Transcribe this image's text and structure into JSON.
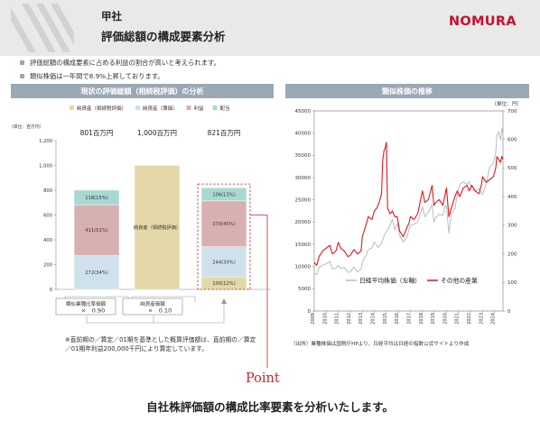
{
  "header": {
    "company": "甲社",
    "title": "評価総額の構成要素分析",
    "logo": "NOMURA",
    "colors": {
      "background": "#e9e9e9",
      "logo": "#c8102e"
    }
  },
  "bullets": [
    "評価総額の構成要素に占める利益の割合が高いと考えられます。",
    "類似株価は一年間で8.9%上昇しております。"
  ],
  "left_panel": {
    "title": "現状の評価総額（相続税評価）の分析",
    "unit_label": "（単位：百万円）",
    "bar_totals": [
      "801百万円",
      "1,000百万円",
      "821百万円"
    ],
    "box1": {
      "line1": "類似業種比準価額",
      "line2": "×　0.90"
    },
    "box2": {
      "line1": "純資産価額",
      "line2": "×　0.10"
    },
    "note_lines": [
      "※直前期の／算定／01期を基準とした概算評価額は、直前期の／算定",
      "／01期年利益200,000千円により算定しています。"
    ]
  },
  "right_panel": {
    "title": "類似株価の推移",
    "right_unit": "（単位：円）",
    "source": "（出所）業種株価は国税庁HPより、日経平均は日経の指数公式サイトより作成"
  },
  "point_label": "Point",
  "caption": "自社株評価額の構成比率要素を分析いたします。",
  "chart_data": [
    {
      "type": "bar",
      "stacked": true,
      "categories": [
        "",
        "",
        ""
      ],
      "ylabel": "（単位：百万円）",
      "ylim": [
        0,
        1200
      ],
      "yticks": [
        0,
        200,
        400,
        600,
        800,
        1000,
        1200
      ],
      "ytick_labels": [
        "0",
        "200",
        "400",
        "600",
        "800",
        "1,000",
        "1,200"
      ],
      "legend": [
        "純資産（相続税評価）",
        "純資産（簿価）",
        "利益",
        "配当"
      ],
      "legend_colors": [
        "#e4d7a8",
        "#cfe2ec",
        "#d9b0b2",
        "#a8d8d2"
      ],
      "series": [
        {
          "name": "純資産（相続税評価）",
          "color": "#e4d7a8",
          "values": [
            0,
            1000,
            100
          ],
          "labels": [
            "",
            "純資産（相続税評価）",
            "100(12%)"
          ]
        },
        {
          "name": "純資産（簿価）",
          "color": "#cfe2ec",
          "values": [
            272,
            0,
            244
          ],
          "labels": [
            "272(34%)",
            "",
            "244(30%)"
          ]
        },
        {
          "name": "利益",
          "color": "#d9b0b2",
          "values": [
            411,
            0,
            370
          ],
          "labels": [
            "411(51%)",
            "",
            "370(45%)"
          ]
        },
        {
          "name": "配当",
          "color": "#a8d8d2",
          "values": [
            118,
            0,
            106
          ],
          "labels": [
            "118(15%)",
            "",
            "106(13%)"
          ]
        }
      ],
      "totals": [
        801,
        1000,
        821
      ],
      "grid": false,
      "highlight_bar_index": 2
    },
    {
      "type": "line",
      "x_range": [
        2009,
        2024.7
      ],
      "xticks": [
        "2009",
        "2010",
        "2011",
        "2012",
        "2013",
        "2014",
        "2015",
        "2016",
        "2017",
        "2018",
        "2019",
        "2020",
        "2021",
        "2022",
        "2023",
        "2024"
      ],
      "ylim_left": [
        0,
        45000
      ],
      "yticks_left": [
        "0",
        "5000",
        "10000",
        "15000",
        "20000",
        "25000",
        "30000",
        "35000",
        "40000",
        "45000"
      ],
      "ylim_right": [
        0,
        700
      ],
      "yticks_right": [
        "0",
        "100",
        "200",
        "300",
        "400",
        "500",
        "600",
        "700"
      ],
      "legend_position": "bottom-center",
      "series": [
        {
          "name": "日経平均株価（左軸）",
          "axis": "left",
          "color": "#b8bcc0",
          "x": [
            2009.0,
            2009.2,
            2009.4,
            2009.7,
            2010.0,
            2010.3,
            2010.5,
            2010.8,
            2011.0,
            2011.2,
            2011.5,
            2011.8,
            2012.0,
            2012.3,
            2012.6,
            2012.9,
            2013.0,
            2013.3,
            2013.5,
            2013.8,
            2014.0,
            2014.3,
            2014.6,
            2014.9,
            2015.0,
            2015.3,
            2015.5,
            2015.7,
            2015.9,
            2016.1,
            2016.4,
            2016.7,
            2016.9,
            2017.0,
            2017.3,
            2017.6,
            2017.9,
            2018.0,
            2018.2,
            2018.5,
            2018.8,
            2018.95,
            2019.1,
            2019.4,
            2019.7,
            2019.9,
            2020.0,
            2020.2,
            2020.4,
            2020.7,
            2020.9,
            2021.1,
            2021.4,
            2021.7,
            2021.9,
            2022.1,
            2022.4,
            2022.7,
            2022.9,
            2023.0,
            2023.3,
            2023.6,
            2023.9,
            2024.1,
            2024.2,
            2024.35,
            2024.5,
            2024.6,
            2024.7
          ],
          "y": [
            8500,
            8200,
            9800,
            10300,
            10600,
            11100,
            9500,
            9600,
            10300,
            9600,
            9800,
            8700,
            8800,
            9900,
            8800,
            9500,
            11000,
            12500,
            13800,
            14200,
            15500,
            14300,
            15300,
            17500,
            17800,
            19200,
            20600,
            18200,
            19700,
            17000,
            15500,
            16500,
            18500,
            19200,
            19500,
            20000,
            22500,
            23500,
            21200,
            22300,
            23900,
            20000,
            21000,
            21800,
            21500,
            23700,
            23500,
            17500,
            21800,
            23000,
            26200,
            28500,
            29000,
            28500,
            29100,
            27500,
            26800,
            27500,
            26500,
            26200,
            28500,
            32500,
            33200,
            35600,
            39500,
            40300,
            38500,
            41000,
            39800
          ]
        },
        {
          "name": "その他の産業",
          "axis": "right",
          "color": "#e8141c",
          "x": [
            2009.0,
            2009.2,
            2009.4,
            2009.7,
            2010.0,
            2010.3,
            2010.5,
            2010.8,
            2011.0,
            2011.2,
            2011.5,
            2011.8,
            2012.0,
            2012.3,
            2012.6,
            2012.9,
            2013.0,
            2013.3,
            2013.5,
            2013.8,
            2014.0,
            2014.2,
            2014.4,
            2014.6,
            2014.7,
            2014.8,
            2014.9,
            2015.0,
            2015.1,
            2015.3,
            2015.5,
            2015.7,
            2015.9,
            2016.1,
            2016.4,
            2016.7,
            2016.9,
            2017.0,
            2017.3,
            2017.6,
            2017.9,
            2018.0,
            2018.2,
            2018.5,
            2018.8,
            2018.95,
            2019.1,
            2019.4,
            2019.7,
            2019.9,
            2020.0,
            2020.2,
            2020.4,
            2020.7,
            2020.9,
            2021.1,
            2021.4,
            2021.7,
            2021.9,
            2022.1,
            2022.4,
            2022.7,
            2022.9,
            2023.0,
            2023.3,
            2023.6,
            2023.9,
            2024.1,
            2024.2,
            2024.35,
            2024.5,
            2024.6,
            2024.7
          ],
          "y": [
            170,
            160,
            190,
            210,
            220,
            230,
            200,
            210,
            240,
            220,
            210,
            190,
            195,
            215,
            200,
            210,
            260,
            300,
            330,
            320,
            350,
            360,
            380,
            410,
            530,
            560,
            570,
            590,
            360,
            340,
            350,
            330,
            330,
            280,
            260,
            290,
            310,
            330,
            320,
            340,
            400,
            420,
            380,
            390,
            440,
            370,
            380,
            390,
            370,
            410,
            430,
            330,
            360,
            400,
            420,
            400,
            430,
            440,
            420,
            440,
            420,
            410,
            440,
            470,
            450,
            460,
            470,
            500,
            540,
            530,
            520,
            540,
            530
          ]
        }
      ]
    }
  ]
}
